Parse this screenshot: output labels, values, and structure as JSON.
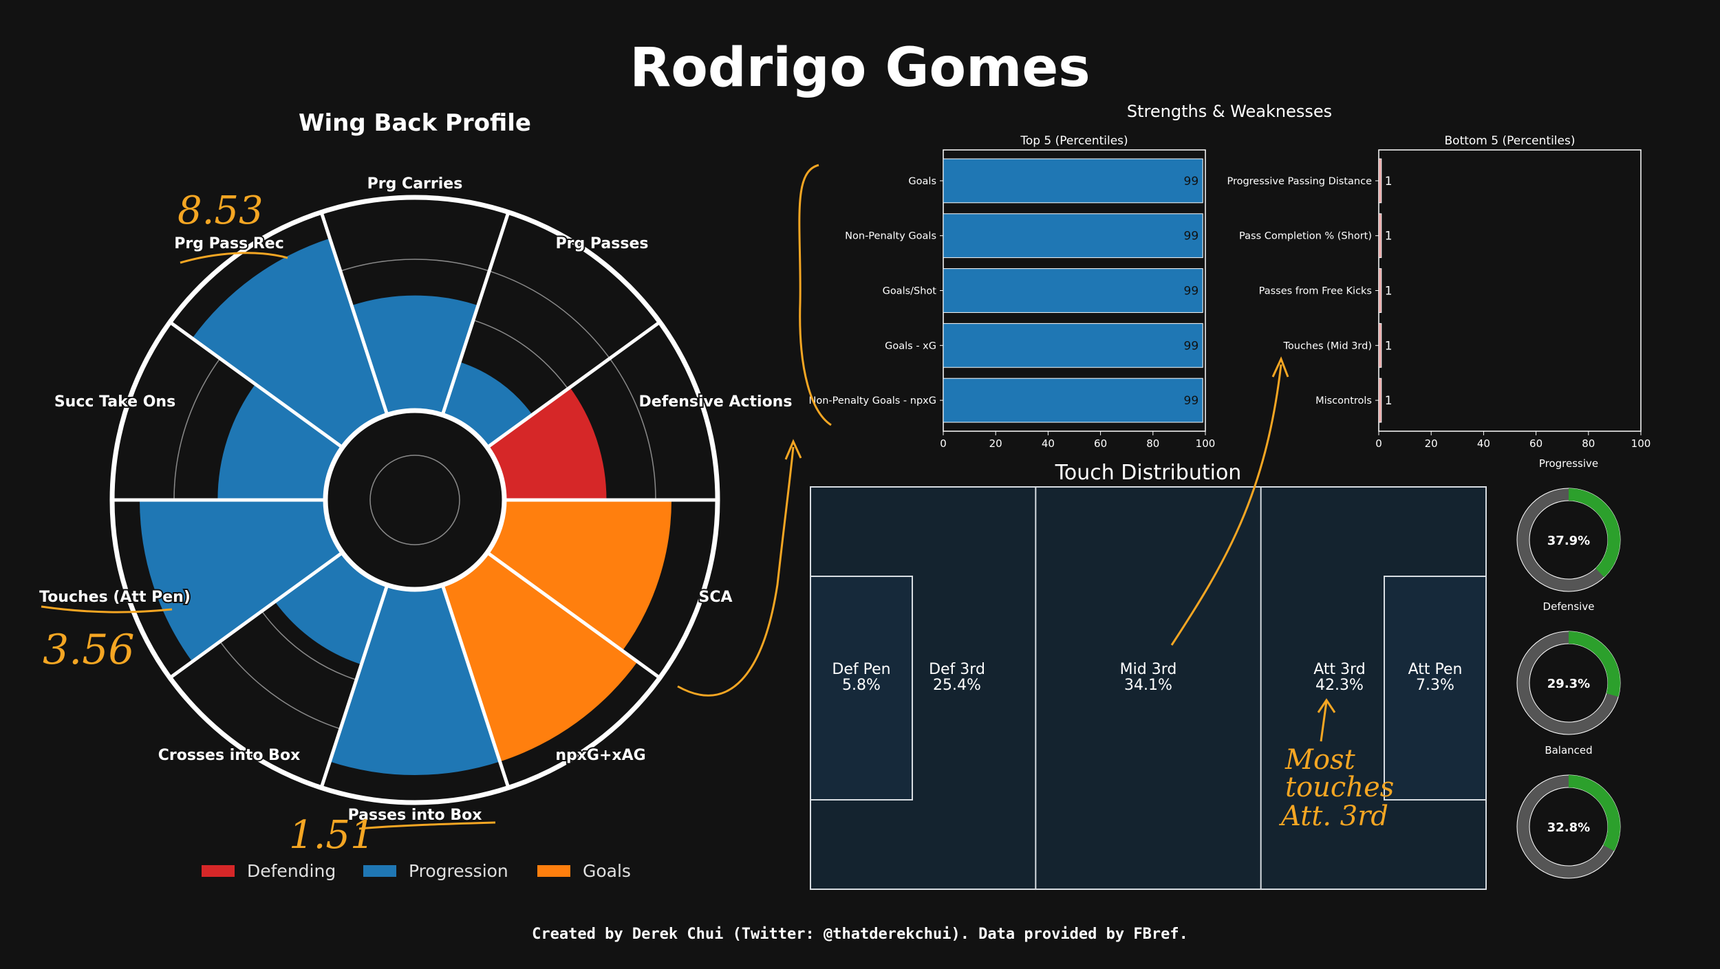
{
  "page": {
    "title": "Rodrigo Gomes",
    "footer": "Created by Derek Chui (Twitter: @thatderekchui). Data provided by FBref."
  },
  "colors": {
    "background": "#121212",
    "defending": "#d62728",
    "progression": "#1f77b4",
    "goals": "#ff7f0e",
    "pitch": "#14232f",
    "donut_fill": "#2ca02c",
    "donut_rest": "#555555",
    "annotation": "#f5a623",
    "bottom_bar": "#e8a0a0"
  },
  "chart_data": [
    {
      "type": "radar",
      "title": "Wing Back Profile",
      "categories": [
        "Defensive Actions",
        "Prg Passes",
        "Prg Carries",
        "Prg Pass Rec",
        "Succ Take Ons",
        "Touches (Att Pen)",
        "Crosses into Box",
        "Passes into Box",
        "npxG+xAG",
        "SCA"
      ],
      "groups": [
        "Defending",
        "Progression",
        "Progression",
        "Progression",
        "Progression",
        "Progression",
        "Progression",
        "Progression",
        "Goals",
        "Goals"
      ],
      "values": [
        55,
        30,
        62,
        100,
        58,
        100,
        45,
        100,
        100,
        90
      ],
      "ylim": [
        0,
        100
      ],
      "legend": [
        "Defending",
        "Progression",
        "Goals"
      ]
    },
    {
      "type": "bar",
      "title": "Top 5 (Percentiles)",
      "categories": [
        "Goals",
        "Non-Penalty Goals",
        "Goals/Shot",
        "Goals - xG",
        "Non-Penalty Goals - npxG"
      ],
      "values": [
        99,
        99,
        99,
        99,
        99
      ],
      "xlim": [
        0,
        100
      ],
      "xticks": [
        "0",
        "20",
        "40",
        "60",
        "80",
        "100"
      ]
    },
    {
      "type": "bar",
      "title": "Bottom 5 (Percentiles)",
      "categories": [
        "Progressive Passing Distance",
        "Pass Completion % (Short)",
        "Passes from Free Kicks",
        "Touches (Mid 3rd)",
        "Miscontrols"
      ],
      "values": [
        1,
        1,
        1,
        1,
        1
      ],
      "xlim": [
        0,
        100
      ],
      "xticks": [
        "0",
        "20",
        "40",
        "60",
        "80",
        "100"
      ]
    },
    {
      "type": "pitch",
      "title": "Touch Distribution",
      "zones": [
        {
          "name": "Def Pen",
          "value": "5.8%"
        },
        {
          "name": "Def 3rd",
          "value": "25.4%"
        },
        {
          "name": "Mid 3rd",
          "value": "34.1%"
        },
        {
          "name": "Att 3rd",
          "value": "42.3%"
        },
        {
          "name": "Att Pen",
          "value": "7.3%"
        }
      ]
    },
    {
      "type": "pie",
      "donuts": [
        {
          "label": "Progressive",
          "value": 37.9,
          "text": "37.9%"
        },
        {
          "label": "Defensive",
          "value": 29.3,
          "text": "29.3%"
        },
        {
          "label": "Balanced",
          "value": 32.8,
          "text": "32.8%"
        }
      ]
    }
  ],
  "section_title": "Strengths & Weaknesses",
  "annotations": {
    "prg_pass_rec": "8.53",
    "touches_att_pen": "3.56",
    "passes_into_box": "1.51",
    "most_touches_1": "Most",
    "most_touches_2": "touches",
    "most_touches_3": "Att. 3rd"
  }
}
